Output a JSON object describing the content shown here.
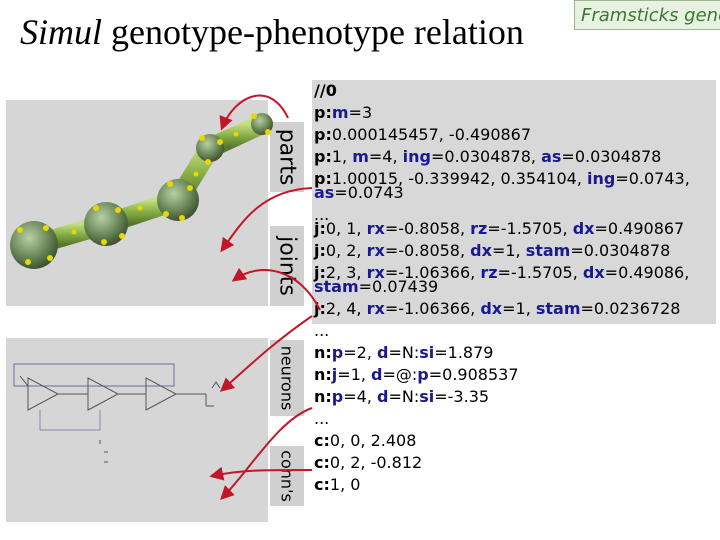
{
  "title": {
    "italic": "Simul",
    "rest": " genotype-phenotype relation"
  },
  "badge": "Framsticks genetic",
  "side_labels": {
    "parts": "parts",
    "joints": "joints",
    "neurons": "neurons",
    "conns": "conn's"
  },
  "code": {
    "l0": "//0",
    "l1": [
      "p:",
      "m",
      "=3"
    ],
    "l2": [
      "p:",
      "0.000145457, -0.490867"
    ],
    "l3": [
      "p:",
      "1, ",
      "m",
      "=4, ",
      "ing",
      "=0.0304878, ",
      "as",
      "=0.0304878"
    ],
    "l4": [
      "p:",
      "1.00015, -0.339942, 0.354104, ",
      "ing",
      "=0.0743,"
    ],
    "l4b": [
      "as",
      "=0.0743"
    ],
    "e1": "...",
    "l5": [
      "j:",
      "0, 1, ",
      "rx",
      "=-0.8058, ",
      "rz",
      "=-1.5705, ",
      "dx",
      "=0.490867"
    ],
    "l6": [
      "j:",
      "0, 2, ",
      "rx",
      "=-0.8058, ",
      "dx",
      "=1, ",
      "stam",
      "=0.0304878"
    ],
    "l7": [
      "j:",
      "2, 3, ",
      "rx",
      "=-1.06366, ",
      "rz",
      "=-1.5705, ",
      "dx",
      "=0.49086,"
    ],
    "l7b": [
      "stam",
      "=0.07439"
    ],
    "l8": [
      "j:",
      "2, 4, ",
      "rx",
      "=-1.06366, ",
      "dx",
      "=1, ",
      "stam",
      "=0.0236728"
    ],
    "e2": "...",
    "l9": [
      "n:",
      "p",
      "=2, ",
      "d",
      "=N:",
      "si",
      "=1.879"
    ],
    "l10": [
      "n:",
      "j",
      "=1, ",
      "d",
      "=@:",
      "p",
      "=0.908537"
    ],
    "l11": [
      "n:",
      "p",
      "=4, ",
      "d",
      "=N:",
      "si",
      "=-3.35"
    ],
    "e3": "...",
    "l12": [
      "c:",
      "0, 0, 2.408"
    ],
    "l13": [
      "c:",
      "0, 2, -0.812"
    ],
    "l14": [
      "c:",
      "1, 0"
    ]
  },
  "colors": {
    "arrow": "#c0182a",
    "keyword": "#1a1a8e",
    "creature": "#6d8a5a",
    "joint": "#8ab04a",
    "dots": "#e6d800"
  }
}
